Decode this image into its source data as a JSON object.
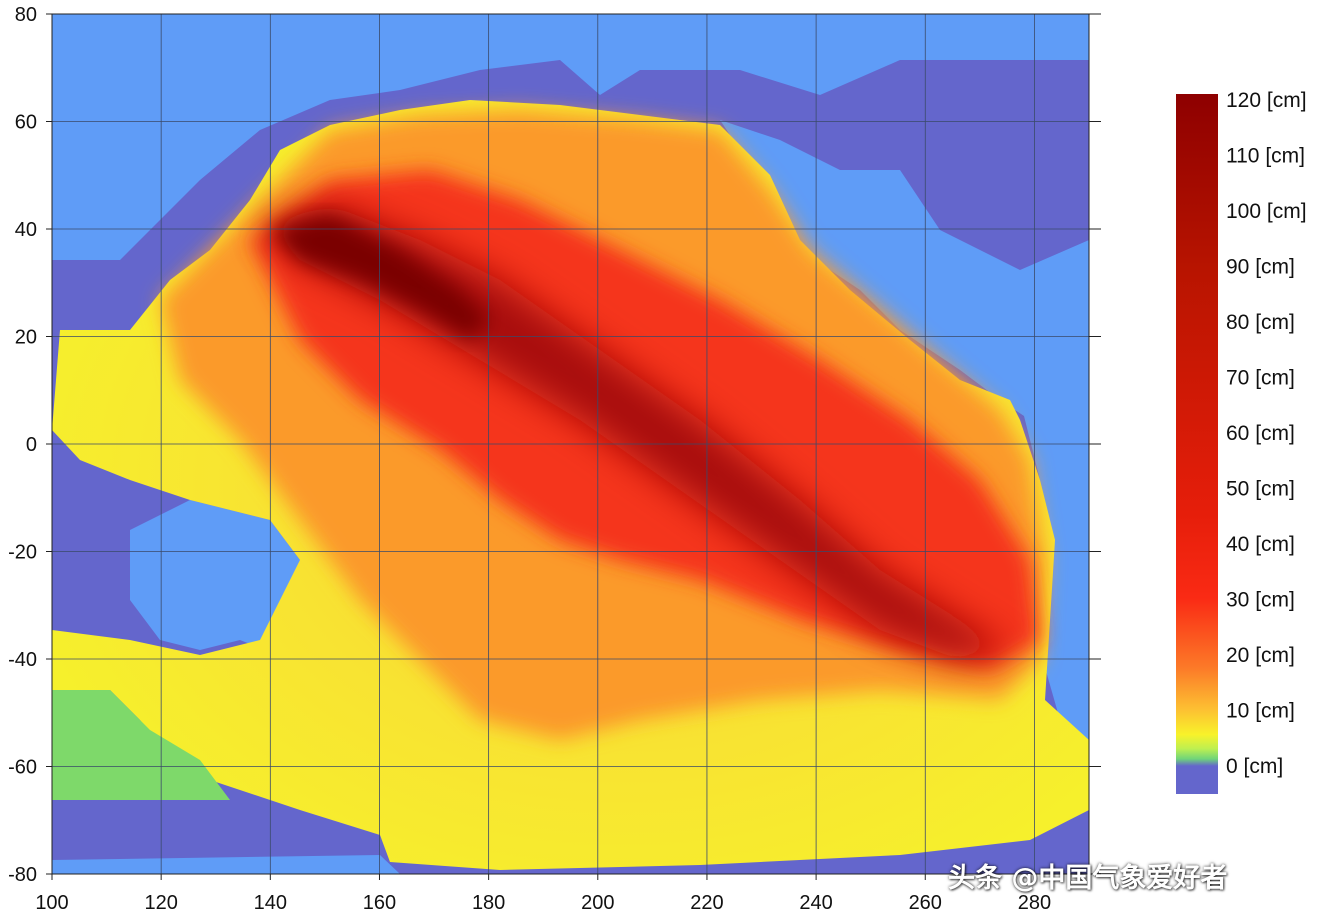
{
  "chart_data": {
    "type": "heatmap",
    "description_source": "Tsunami maximum wave amplitude map over the Pacific Ocean",
    "x_axis": {
      "range": [
        100,
        290
      ],
      "ticks": [
        100,
        120,
        140,
        160,
        180,
        200,
        220,
        240,
        260,
        280
      ],
      "tick_labels": [
        "100",
        "120",
        "140",
        "160",
        "180",
        "200",
        "220",
        "240",
        "260",
        "280"
      ]
    },
    "y_axis": {
      "range": [
        -80,
        80
      ],
      "ticks": [
        80,
        60,
        40,
        20,
        0,
        -20,
        -40,
        -60,
        -80
      ],
      "tick_labels": [
        "80",
        "60",
        "40",
        "20",
        "0",
        "-20",
        "-40",
        "-60",
        "-80"
      ]
    },
    "grid": true,
    "colorbar": {
      "placement": "right",
      "labels": [
        "120 [cm]",
        "110 [cm]",
        "100 [cm]",
        "90 [cm]",
        "80 [cm]",
        "70 [cm]",
        "60 [cm]",
        "50 [cm]",
        "40 [cm]",
        "30 [cm]",
        "20 [cm]",
        "10 [cm]",
        "0 [cm]"
      ],
      "values": [
        120,
        110,
        100,
        90,
        80,
        70,
        60,
        50,
        40,
        30,
        20,
        10,
        0
      ]
    },
    "colors": {
      "land": "#5f9cf7",
      "no_data_ocean": "#6466cc",
      "gridline": "#3a4a6a",
      "low_green": "#7ed96a",
      "yellow": "#f6f32a",
      "orange": "#fda02a",
      "red": "#f52a14",
      "dark_red": "#8e0a0a"
    }
  },
  "watermark": "头条 @中国气象爱好者"
}
